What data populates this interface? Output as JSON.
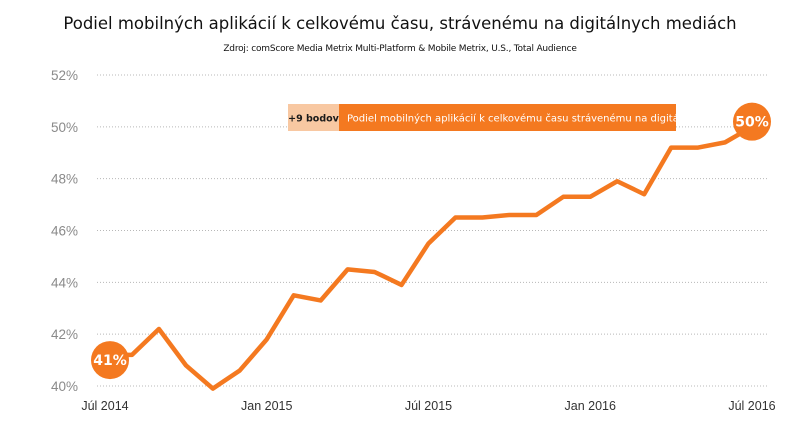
{
  "chart_data": {
    "type": "line",
    "title": "Podiel mobilných aplikácií k celkovému času, strávenému na digitálnych mediách",
    "subtitle": "Zdroj: comScore Media Metrix Multi-Platform & Mobile Metrix, U.S., Total Audience",
    "ylim": [
      40,
      52
    ],
    "y_ticks": [
      "40%",
      "42%",
      "44%",
      "46%",
      "48%",
      "50%",
      "52%"
    ],
    "y_tick_values": [
      40,
      42,
      44,
      46,
      48,
      50,
      52
    ],
    "x_ticks": [
      "Júl 2014",
      "Jan 2015",
      "Júl 2015",
      "Jan 2016",
      "Júl 2016"
    ],
    "x_tick_values": [
      0,
      6,
      12,
      18,
      24
    ],
    "grid": true,
    "legend": {
      "position": "top-center",
      "badge": "+9 bodov",
      "label": "Podiel mobilných aplikácií k celkovému času strávenému na digitálnych mediách"
    },
    "series": [
      {
        "name": "Podiel mobilných aplikácií k celkovému času strávenému na digitálnych mediách",
        "color": "#f47920",
        "x": [
          0,
          1,
          2,
          3,
          4,
          5,
          6,
          7,
          8,
          9,
          10,
          11,
          12,
          13,
          14,
          15,
          16,
          17,
          18,
          19,
          20,
          21,
          22,
          23,
          24
        ],
        "values": [
          41.2,
          41.2,
          42.2,
          40.8,
          39.9,
          40.6,
          41.8,
          43.5,
          43.3,
          44.5,
          44.4,
          43.9,
          45.5,
          46.5,
          46.5,
          46.6,
          46.6,
          47.3,
          47.3,
          47.9,
          47.4,
          49.2,
          49.2,
          49.4,
          50.0
        ]
      }
    ],
    "annotations": [
      {
        "x": 0,
        "y": 41.0,
        "text": "41%"
      },
      {
        "x": 24,
        "y": 50.2,
        "text": "50%"
      }
    ],
    "colors": {
      "line": "#f47920",
      "badge_bg": "#f8c8a2",
      "legend_bg": "#f47920",
      "bubble": "#f47920"
    }
  }
}
